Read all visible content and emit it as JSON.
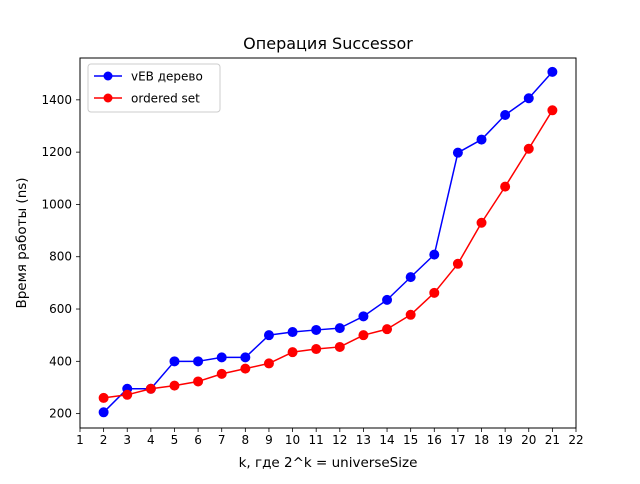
{
  "chart_data": {
    "type": "line",
    "title": "Операция Successor",
    "xlabel": "k, где 2^k = universeSize",
    "ylabel": "Время работы (ns)",
    "xlim": [
      1,
      22
    ],
    "ylim": [
      145,
      1560
    ],
    "x_ticks": [
      1,
      2,
      3,
      4,
      5,
      6,
      7,
      8,
      9,
      10,
      11,
      12,
      13,
      14,
      15,
      16,
      17,
      18,
      19,
      20,
      21,
      22
    ],
    "y_ticks": [
      200,
      400,
      600,
      800,
      1000,
      1200,
      1400
    ],
    "grid": false,
    "legend_position": "upper-left",
    "x": [
      2,
      3,
      4,
      5,
      6,
      7,
      8,
      9,
      10,
      11,
      12,
      13,
      14,
      15,
      16,
      17,
      18,
      19,
      20,
      21
    ],
    "series": [
      {
        "name": "vEB дерево",
        "color": "#0000ff",
        "marker": "circle",
        "values": [
          205,
          295,
          295,
          400,
          400,
          415,
          415,
          500,
          512,
          520,
          527,
          572,
          635,
          722,
          808,
          1198,
          1248,
          1342,
          1406,
          1507
        ]
      },
      {
        "name": "ordered set",
        "color": "#ff0000",
        "marker": "circle",
        "values": [
          260,
          272,
          295,
          307,
          323,
          352,
          372,
          392,
          435,
          447,
          455,
          500,
          523,
          578,
          662,
          773,
          930,
          1068,
          1213,
          1360
        ]
      }
    ]
  }
}
